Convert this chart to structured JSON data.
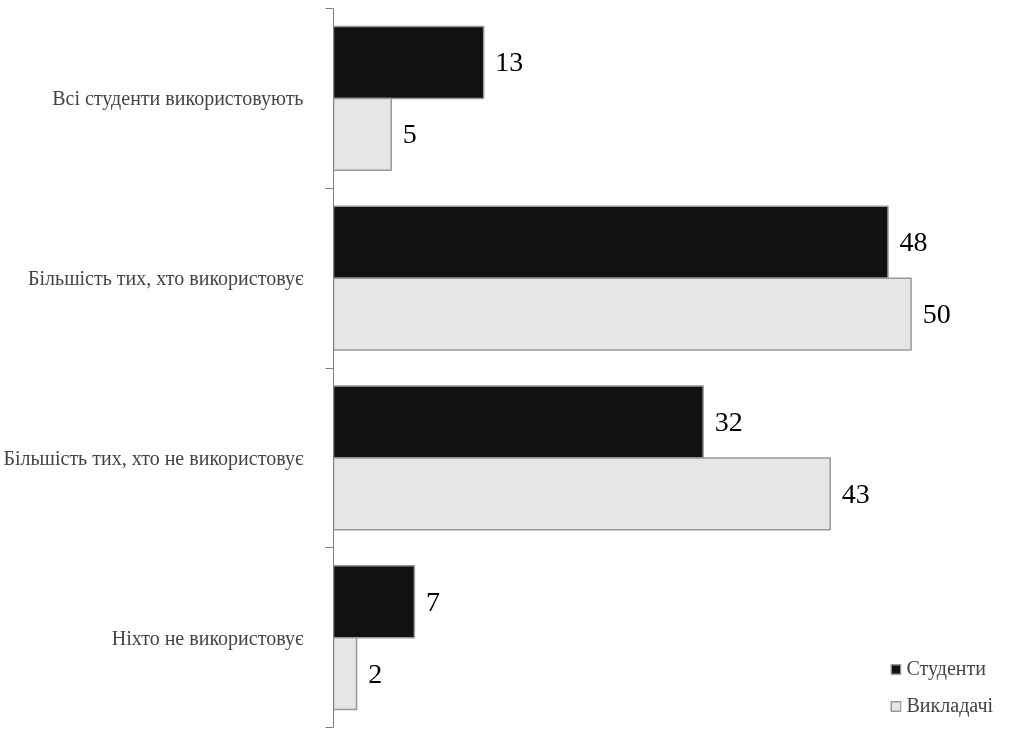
{
  "chart_data": {
    "type": "bar",
    "orientation": "horizontal",
    "categories": [
      "Всі студенти використовують",
      "Більшість тих, хто використовує",
      "Більшість тих, хто не використовує",
      "Ніхто не використовує"
    ],
    "series": [
      {
        "name": "Студенти",
        "color": "#111111",
        "values": [
          13,
          48,
          32,
          7
        ]
      },
      {
        "name": "Викладачі",
        "color": "#e6e6e6",
        "values": [
          5,
          50,
          43,
          2
        ]
      }
    ],
    "data_labels": true,
    "legend": "bottom right",
    "grid": false
  }
}
